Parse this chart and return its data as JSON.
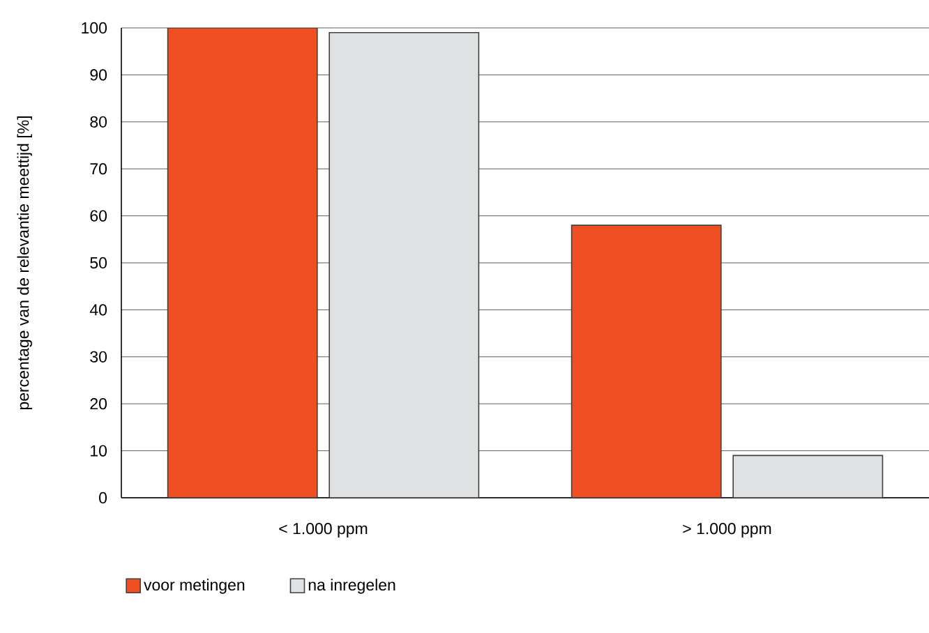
{
  "chart_data": {
    "type": "bar",
    "ylabel": "percentage van de relevantie meettijd [%]",
    "categories": [
      "< 1.000 ppm",
      "> 1.000 ppm"
    ],
    "series": [
      {
        "name": "voor metingen",
        "color": "#f04e23",
        "values": [
          100,
          58
        ]
      },
      {
        "name": "na inregelen",
        "color": "#e0e1e3",
        "values": [
          99,
          9
        ]
      }
    ],
    "ylim": [
      0,
      100
    ],
    "yticks": [
      0,
      10,
      20,
      30,
      40,
      50,
      60,
      70,
      80,
      90,
      100
    ],
    "grid": "y",
    "legend": "bottom"
  }
}
